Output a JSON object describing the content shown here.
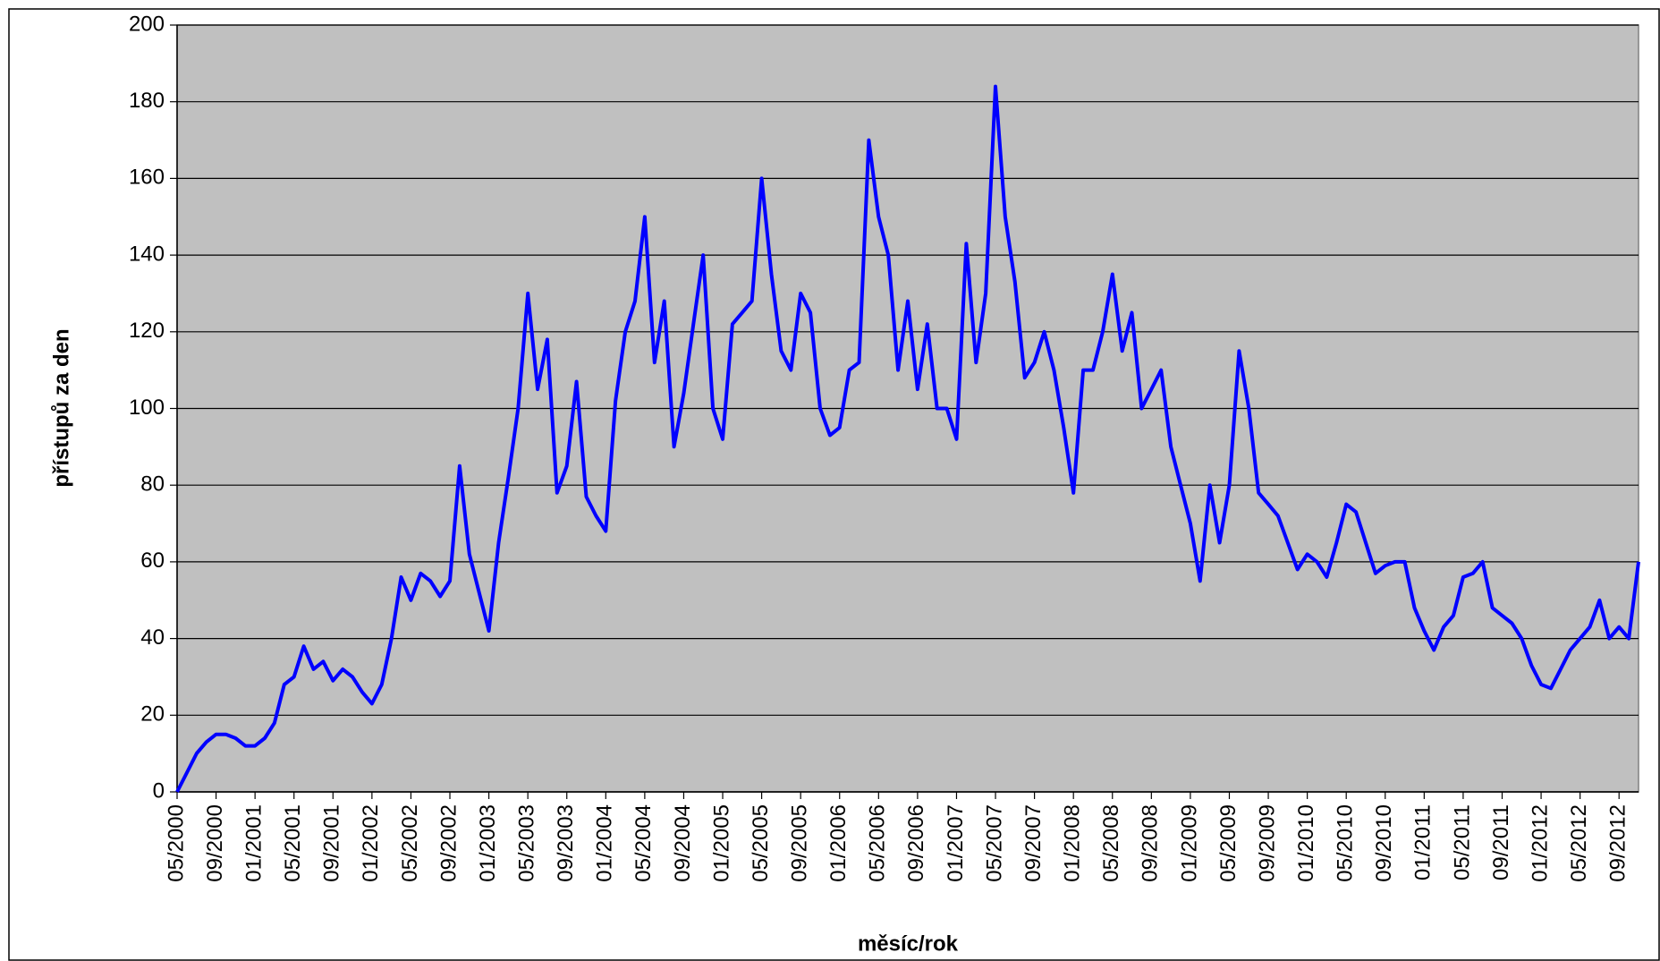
{
  "chart_data": {
    "type": "line",
    "x_label": "měsíc/rok",
    "y_label": "přístupů za den",
    "categories": [
      "05/2000",
      null,
      null,
      null,
      "09/2000",
      null,
      null,
      null,
      "01/2001",
      null,
      null,
      null,
      "05/2001",
      null,
      null,
      null,
      "09/2001",
      null,
      null,
      null,
      "01/2002",
      null,
      null,
      null,
      "05/2002",
      null,
      null,
      null,
      "09/2002",
      null,
      null,
      null,
      "01/2003",
      null,
      null,
      null,
      "05/2003",
      null,
      null,
      null,
      "09/2003",
      null,
      null,
      null,
      "01/2004",
      null,
      null,
      null,
      "05/2004",
      null,
      null,
      null,
      "09/2004",
      null,
      null,
      null,
      "01/2005",
      null,
      null,
      null,
      "05/2005",
      null,
      null,
      null,
      "09/2005",
      null,
      null,
      null,
      "01/2006",
      null,
      null,
      null,
      "05/2006",
      null,
      null,
      null,
      "09/2006",
      null,
      null,
      null,
      "01/2007",
      null,
      null,
      null,
      "05/2007",
      null,
      null,
      null,
      "09/2007",
      null,
      null,
      null,
      "01/2008",
      null,
      null,
      null,
      "05/2008",
      null,
      null,
      null,
      "09/2008",
      null,
      null,
      null,
      "01/2009",
      null,
      null,
      null,
      "05/2009",
      null,
      null,
      null,
      "09/2009",
      null,
      null,
      null,
      "01/2010",
      null,
      null,
      null,
      "05/2010",
      null,
      null,
      null,
      "09/2010",
      null,
      null,
      null,
      "01/2011",
      null,
      null,
      null,
      "05/2011",
      null,
      null,
      null,
      "09/2011",
      null,
      null,
      null,
      "01/2012",
      null,
      null,
      null,
      "05/2012",
      null,
      null,
      null,
      "09/2012",
      null,
      null
    ],
    "values": [
      0,
      5,
      10,
      13,
      15,
      15,
      14,
      12,
      12,
      14,
      18,
      28,
      30,
      38,
      32,
      34,
      29,
      32,
      30,
      26,
      23,
      28,
      40,
      56,
      50,
      57,
      55,
      51,
      55,
      85,
      62,
      52,
      42,
      65,
      82,
      100,
      130,
      105,
      118,
      78,
      85,
      107,
      77,
      72,
      68,
      102,
      120,
      128,
      150,
      112,
      128,
      90,
      104,
      122,
      140,
      100,
      92,
      122,
      125,
      128,
      160,
      135,
      115,
      110,
      130,
      125,
      100,
      93,
      95,
      110,
      112,
      170,
      150,
      140,
      110,
      128,
      105,
      122,
      100,
      100,
      92,
      143,
      112,
      130,
      184,
      150,
      133,
      108,
      112,
      120,
      110,
      95,
      78,
      110,
      110,
      120,
      135,
      115,
      125,
      100,
      105,
      110,
      90,
      80,
      70,
      55,
      80,
      65,
      80,
      115,
      100,
      78,
      75,
      72,
      65,
      58,
      62,
      60,
      56,
      65,
      75,
      73,
      65,
      57,
      59,
      60,
      60,
      48,
      42,
      37,
      43,
      46,
      56,
      57,
      60,
      48,
      46,
      44,
      40,
      33,
      28,
      27,
      32,
      37,
      40,
      43,
      50,
      40,
      43,
      40,
      60
    ],
    "color": "#0000ff",
    "ylim": [
      0,
      200
    ],
    "yticks": [
      0,
      20,
      40,
      60,
      80,
      100,
      120,
      140,
      160,
      180,
      200
    ],
    "grid": true,
    "plot_background": "#c0c0c0"
  }
}
